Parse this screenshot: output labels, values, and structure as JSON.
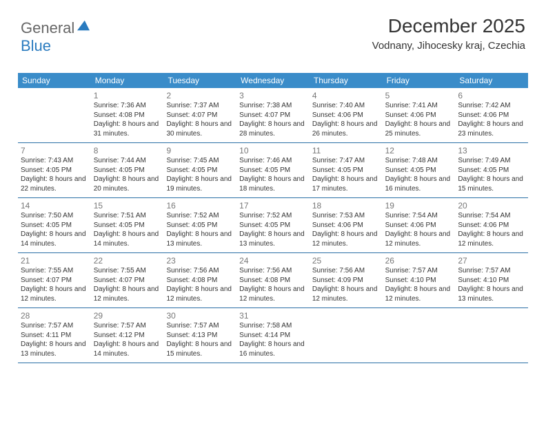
{
  "logo": {
    "line1": "General",
    "line2": "Blue"
  },
  "title": "December 2025",
  "location": "Vodnany, Jihocesky kraj, Czechia",
  "colors": {
    "header_bg": "#3a8cc9",
    "header_text": "#ffffff",
    "border": "#2a6fa5",
    "daynum": "#777777",
    "body_text": "#333333",
    "logo_general": "#666666",
    "logo_blue": "#2a7bbf"
  },
  "weekdays": [
    "Sunday",
    "Monday",
    "Tuesday",
    "Wednesday",
    "Thursday",
    "Friday",
    "Saturday"
  ],
  "days": [
    {
      "num": "",
      "sunrise": "",
      "sunset": "",
      "daylight": ""
    },
    {
      "num": "1",
      "sunrise": "Sunrise: 7:36 AM",
      "sunset": "Sunset: 4:08 PM",
      "daylight": "Daylight: 8 hours and 31 minutes."
    },
    {
      "num": "2",
      "sunrise": "Sunrise: 7:37 AM",
      "sunset": "Sunset: 4:07 PM",
      "daylight": "Daylight: 8 hours and 30 minutes."
    },
    {
      "num": "3",
      "sunrise": "Sunrise: 7:38 AM",
      "sunset": "Sunset: 4:07 PM",
      "daylight": "Daylight: 8 hours and 28 minutes."
    },
    {
      "num": "4",
      "sunrise": "Sunrise: 7:40 AM",
      "sunset": "Sunset: 4:06 PM",
      "daylight": "Daylight: 8 hours and 26 minutes."
    },
    {
      "num": "5",
      "sunrise": "Sunrise: 7:41 AM",
      "sunset": "Sunset: 4:06 PM",
      "daylight": "Daylight: 8 hours and 25 minutes."
    },
    {
      "num": "6",
      "sunrise": "Sunrise: 7:42 AM",
      "sunset": "Sunset: 4:06 PM",
      "daylight": "Daylight: 8 hours and 23 minutes."
    },
    {
      "num": "7",
      "sunrise": "Sunrise: 7:43 AM",
      "sunset": "Sunset: 4:05 PM",
      "daylight": "Daylight: 8 hours and 22 minutes."
    },
    {
      "num": "8",
      "sunrise": "Sunrise: 7:44 AM",
      "sunset": "Sunset: 4:05 PM",
      "daylight": "Daylight: 8 hours and 20 minutes."
    },
    {
      "num": "9",
      "sunrise": "Sunrise: 7:45 AM",
      "sunset": "Sunset: 4:05 PM",
      "daylight": "Daylight: 8 hours and 19 minutes."
    },
    {
      "num": "10",
      "sunrise": "Sunrise: 7:46 AM",
      "sunset": "Sunset: 4:05 PM",
      "daylight": "Daylight: 8 hours and 18 minutes."
    },
    {
      "num": "11",
      "sunrise": "Sunrise: 7:47 AM",
      "sunset": "Sunset: 4:05 PM",
      "daylight": "Daylight: 8 hours and 17 minutes."
    },
    {
      "num": "12",
      "sunrise": "Sunrise: 7:48 AM",
      "sunset": "Sunset: 4:05 PM",
      "daylight": "Daylight: 8 hours and 16 minutes."
    },
    {
      "num": "13",
      "sunrise": "Sunrise: 7:49 AM",
      "sunset": "Sunset: 4:05 PM",
      "daylight": "Daylight: 8 hours and 15 minutes."
    },
    {
      "num": "14",
      "sunrise": "Sunrise: 7:50 AM",
      "sunset": "Sunset: 4:05 PM",
      "daylight": "Daylight: 8 hours and 14 minutes."
    },
    {
      "num": "15",
      "sunrise": "Sunrise: 7:51 AM",
      "sunset": "Sunset: 4:05 PM",
      "daylight": "Daylight: 8 hours and 14 minutes."
    },
    {
      "num": "16",
      "sunrise": "Sunrise: 7:52 AM",
      "sunset": "Sunset: 4:05 PM",
      "daylight": "Daylight: 8 hours and 13 minutes."
    },
    {
      "num": "17",
      "sunrise": "Sunrise: 7:52 AM",
      "sunset": "Sunset: 4:05 PM",
      "daylight": "Daylight: 8 hours and 13 minutes."
    },
    {
      "num": "18",
      "sunrise": "Sunrise: 7:53 AM",
      "sunset": "Sunset: 4:06 PM",
      "daylight": "Daylight: 8 hours and 12 minutes."
    },
    {
      "num": "19",
      "sunrise": "Sunrise: 7:54 AM",
      "sunset": "Sunset: 4:06 PM",
      "daylight": "Daylight: 8 hours and 12 minutes."
    },
    {
      "num": "20",
      "sunrise": "Sunrise: 7:54 AM",
      "sunset": "Sunset: 4:06 PM",
      "daylight": "Daylight: 8 hours and 12 minutes."
    },
    {
      "num": "21",
      "sunrise": "Sunrise: 7:55 AM",
      "sunset": "Sunset: 4:07 PM",
      "daylight": "Daylight: 8 hours and 12 minutes."
    },
    {
      "num": "22",
      "sunrise": "Sunrise: 7:55 AM",
      "sunset": "Sunset: 4:07 PM",
      "daylight": "Daylight: 8 hours and 12 minutes."
    },
    {
      "num": "23",
      "sunrise": "Sunrise: 7:56 AM",
      "sunset": "Sunset: 4:08 PM",
      "daylight": "Daylight: 8 hours and 12 minutes."
    },
    {
      "num": "24",
      "sunrise": "Sunrise: 7:56 AM",
      "sunset": "Sunset: 4:08 PM",
      "daylight": "Daylight: 8 hours and 12 minutes."
    },
    {
      "num": "25",
      "sunrise": "Sunrise: 7:56 AM",
      "sunset": "Sunset: 4:09 PM",
      "daylight": "Daylight: 8 hours and 12 minutes."
    },
    {
      "num": "26",
      "sunrise": "Sunrise: 7:57 AM",
      "sunset": "Sunset: 4:10 PM",
      "daylight": "Daylight: 8 hours and 12 minutes."
    },
    {
      "num": "27",
      "sunrise": "Sunrise: 7:57 AM",
      "sunset": "Sunset: 4:10 PM",
      "daylight": "Daylight: 8 hours and 13 minutes."
    },
    {
      "num": "28",
      "sunrise": "Sunrise: 7:57 AM",
      "sunset": "Sunset: 4:11 PM",
      "daylight": "Daylight: 8 hours and 13 minutes."
    },
    {
      "num": "29",
      "sunrise": "Sunrise: 7:57 AM",
      "sunset": "Sunset: 4:12 PM",
      "daylight": "Daylight: 8 hours and 14 minutes."
    },
    {
      "num": "30",
      "sunrise": "Sunrise: 7:57 AM",
      "sunset": "Sunset: 4:13 PM",
      "daylight": "Daylight: 8 hours and 15 minutes."
    },
    {
      "num": "31",
      "sunrise": "Sunrise: 7:58 AM",
      "sunset": "Sunset: 4:14 PM",
      "daylight": "Daylight: 8 hours and 16 minutes."
    },
    {
      "num": "",
      "sunrise": "",
      "sunset": "",
      "daylight": ""
    },
    {
      "num": "",
      "sunrise": "",
      "sunset": "",
      "daylight": ""
    },
    {
      "num": "",
      "sunrise": "",
      "sunset": "",
      "daylight": ""
    }
  ]
}
